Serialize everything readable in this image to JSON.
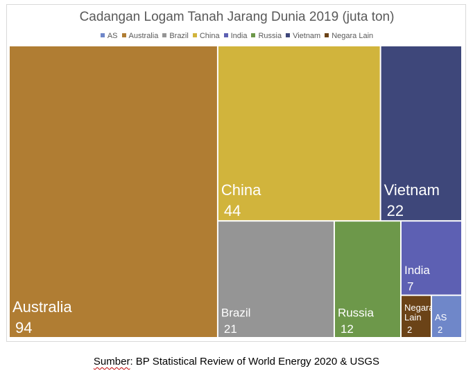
{
  "chart_data": {
    "type": "treemap",
    "title": "Cadangan Logam Tanah Jarang Dunia 2019 (juta ton)",
    "legend_position": "top",
    "categories": [
      {
        "name": "AS",
        "value": 2,
        "color": "#6f87c9"
      },
      {
        "name": "Australia",
        "value": 94,
        "color": "#b07d33"
      },
      {
        "name": "Brazil",
        "value": 21,
        "color": "#959595"
      },
      {
        "name": "China",
        "value": 44,
        "color": "#d1b43c"
      },
      {
        "name": "India",
        "value": 7,
        "color": "#5d60b3"
      },
      {
        "name": "Russia",
        "value": 12,
        "color": "#6d984a"
      },
      {
        "name": "Vietnam",
        "value": 22,
        "color": "#3e477a"
      },
      {
        "name": "Negara Lain",
        "value": 2,
        "color": "#6b4317"
      }
    ]
  },
  "source": {
    "word": "Sumber",
    "text": ": BP Statistical Review of World Energy 2020 & USGS"
  }
}
